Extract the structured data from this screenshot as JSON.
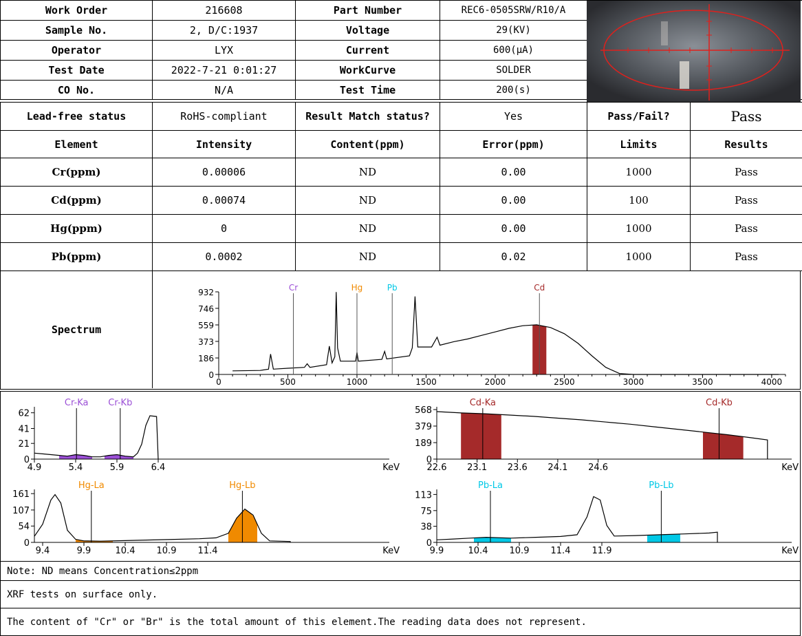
{
  "header": {
    "rows": [
      {
        "l1": "Work Order",
        "v1": "216608",
        "l2": "Part Number",
        "v2": "REC6-0505SRW/R10/A"
      },
      {
        "l1": "Sample No.",
        "v1": "2, D/C:1937",
        "l2": "Voltage",
        "v2": "29(KV)"
      },
      {
        "l1": "Operator",
        "v1": "LYX",
        "l2": "Current",
        "v2": "600(μA)"
      },
      {
        "l1": "Test Date",
        "v1": "2022-7-21 0:01:27",
        "l2": "WorkCurve",
        "v2": "SOLDER"
      },
      {
        "l1": "CO No.",
        "v1": "N/A",
        "l2": "Test Time",
        "v2": "200(s)"
      }
    ]
  },
  "camera_image": {
    "description_icon": "sample-camera-view",
    "crosshair_color": "#e0201c"
  },
  "status_row": {
    "lead_free_label": "Lead-free status",
    "lead_free_value": "RoHS-compliant",
    "match_label": "Result Match status?",
    "match_value": "Yes",
    "passfail_label": "Pass/Fail?",
    "passfail_value": "Pass"
  },
  "results_table": {
    "headers": [
      "Element",
      "Intensity",
      "Content(ppm)",
      "Error(ppm)",
      "Limits",
      "Results"
    ],
    "rows": [
      {
        "element": "Cr(ppm)",
        "intensity": "0.00006",
        "content": "ND",
        "error": "0.00",
        "limit": "1000",
        "result": "Pass"
      },
      {
        "element": "Cd(ppm)",
        "intensity": "0.00074",
        "content": "ND",
        "error": "0.00",
        "limit": "100",
        "result": "Pass"
      },
      {
        "element": "Hg(ppm)",
        "intensity": "0",
        "content": "ND",
        "error": "0.00",
        "limit": "1000",
        "result": "Pass"
      },
      {
        "element": "Pb(ppm)",
        "intensity": "0.0002",
        "content": "ND",
        "error": "0.02",
        "limit": "1000",
        "result": "Pass"
      }
    ]
  },
  "spectrum_label": "Spectrum",
  "chart_data": [
    {
      "type": "line",
      "id": "main-spectrum",
      "yticks": [
        "0",
        "186",
        "373",
        "559",
        "746",
        "932"
      ],
      "ytick_values": [
        0,
        186,
        373,
        559,
        746,
        932
      ],
      "xticks": [
        "0",
        "500",
        "1000",
        "1500",
        "2000",
        "2500",
        "3000",
        "3500",
        "4000"
      ],
      "xtick_values": [
        0,
        500,
        1000,
        1500,
        2000,
        2500,
        3000,
        3500,
        4000
      ],
      "xlim": [
        0,
        4100
      ],
      "ylim": [
        0,
        932
      ],
      "markers": [
        {
          "label": "Cr",
          "x": 540,
          "color": "#9b4fd6"
        },
        {
          "label": "Hg",
          "x": 1000,
          "color": "#f08a00"
        },
        {
          "label": "Pb",
          "x": 1255,
          "color": "#00c8e6"
        },
        {
          "label": "Cd",
          "x": 2320,
          "color": "#a52a2a"
        }
      ],
      "highlight": {
        "x_from": 2270,
        "x_to": 2370,
        "color": "#a52a2a"
      },
      "line_points": [
        [
          100,
          40
        ],
        [
          300,
          45
        ],
        [
          360,
          60
        ],
        [
          375,
          230
        ],
        [
          395,
          60
        ],
        [
          500,
          70
        ],
        [
          620,
          80
        ],
        [
          640,
          120
        ],
        [
          660,
          80
        ],
        [
          780,
          110
        ],
        [
          800,
          320
        ],
        [
          820,
          130
        ],
        [
          840,
          200
        ],
        [
          850,
          930
        ],
        [
          860,
          300
        ],
        [
          880,
          150
        ],
        [
          990,
          150
        ],
        [
          1000,
          250
        ],
        [
          1010,
          150
        ],
        [
          1180,
          170
        ],
        [
          1200,
          260
        ],
        [
          1215,
          175
        ],
        [
          1380,
          210
        ],
        [
          1400,
          300
        ],
        [
          1420,
          880
        ],
        [
          1440,
          310
        ],
        [
          1540,
          310
        ],
        [
          1580,
          420
        ],
        [
          1600,
          330
        ],
        [
          1700,
          370
        ],
        [
          1800,
          400
        ],
        [
          1900,
          440
        ],
        [
          2000,
          480
        ],
        [
          2100,
          520
        ],
        [
          2200,
          550
        ],
        [
          2300,
          560
        ],
        [
          2400,
          530
        ],
        [
          2500,
          460
        ],
        [
          2600,
          350
        ],
        [
          2700,
          210
        ],
        [
          2800,
          80
        ],
        [
          2900,
          10
        ],
        [
          3000,
          0
        ],
        [
          4050,
          0
        ]
      ]
    },
    {
      "type": "line",
      "id": "cr-panel",
      "yticks": [
        "0",
        "21",
        "41",
        "62"
      ],
      "ytick_values": [
        0,
        21,
        41,
        62
      ],
      "xticks": [
        "4.9",
        "5.4",
        "5.9",
        "6.4"
      ],
      "xtick_values": [
        4.9,
        5.4,
        5.9,
        6.4
      ],
      "xlim": [
        4.9,
        9.2
      ],
      "ylim": [
        0,
        70
      ],
      "unit": "KeV",
      "markers": [
        {
          "label": "Cr-Ka",
          "x": 5.41,
          "color": "#9b4fd6"
        },
        {
          "label": "Cr-Kb",
          "x": 5.94,
          "color": "#9b4fd6"
        }
      ],
      "fills": [
        {
          "x_from": 5.2,
          "x_to": 5.6,
          "color": "#9b4fd6"
        },
        {
          "x_from": 5.75,
          "x_to": 6.1,
          "color": "#9b4fd6"
        }
      ],
      "line_points": [
        [
          4.9,
          8
        ],
        [
          5.0,
          7
        ],
        [
          5.1,
          6
        ],
        [
          5.2,
          5
        ],
        [
          5.3,
          4
        ],
        [
          5.4,
          6
        ],
        [
          5.5,
          5
        ],
        [
          5.6,
          3
        ],
        [
          5.7,
          3
        ],
        [
          5.8,
          5
        ],
        [
          5.9,
          6
        ],
        [
          6.0,
          4
        ],
        [
          6.1,
          3
        ],
        [
          6.15,
          8
        ],
        [
          6.2,
          20
        ],
        [
          6.25,
          45
        ],
        [
          6.3,
          58
        ],
        [
          6.38,
          57
        ],
        [
          6.4,
          0
        ]
      ]
    },
    {
      "type": "line",
      "id": "cd-panel",
      "yticks": [
        "0",
        "189",
        "379",
        "568"
      ],
      "ytick_values": [
        0,
        189,
        379,
        568
      ],
      "xticks": [
        "22.6",
        "23.1",
        "23.6",
        "24.1",
        "24.6"
      ],
      "xtick_values": [
        22.6,
        23.1,
        23.6,
        24.1,
        24.6
      ],
      "xlim": [
        22.6,
        27.0
      ],
      "ylim": [
        0,
        600
      ],
      "unit": "KeV",
      "markers": [
        {
          "label": "Cd-Ka",
          "x": 23.17,
          "color": "#a52a2a"
        },
        {
          "label": "Cd-Kb",
          "x": 26.1,
          "color": "#a52a2a"
        }
      ],
      "fills": [
        {
          "x_from": 22.9,
          "x_to": 23.4,
          "color": "#a52a2a"
        },
        {
          "x_from": 25.9,
          "x_to": 26.4,
          "color": "#a52a2a"
        }
      ],
      "line_points": [
        [
          22.6,
          545
        ],
        [
          22.9,
          530
        ],
        [
          23.2,
          520
        ],
        [
          23.5,
          505
        ],
        [
          23.8,
          490
        ],
        [
          24.1,
          470
        ],
        [
          24.4,
          450
        ],
        [
          24.7,
          425
        ],
        [
          25.0,
          400
        ],
        [
          25.3,
          370
        ],
        [
          25.6,
          340
        ],
        [
          25.9,
          310
        ],
        [
          26.2,
          280
        ],
        [
          26.5,
          245
        ],
        [
          26.7,
          220
        ],
        [
          26.7,
          0
        ]
      ]
    },
    {
      "type": "line",
      "id": "hg-panel",
      "yticks": [
        "0",
        "54",
        "107",
        "161"
      ],
      "ytick_values": [
        0,
        54,
        107,
        161
      ],
      "xticks": [
        "9.4",
        "9.9",
        "10.4",
        "10.9",
        "11.4"
      ],
      "xtick_values": [
        9.4,
        9.9,
        10.4,
        10.9,
        11.4
      ],
      "xlim": [
        9.3,
        13.6
      ],
      "ylim": [
        0,
        175
      ],
      "unit": "KeV",
      "markers": [
        {
          "label": "Hg-La",
          "x": 9.99,
          "color": "#f08a00"
        },
        {
          "label": "Hg-Lb",
          "x": 11.82,
          "color": "#f08a00"
        }
      ],
      "fills": [
        {
          "x_from": 9.8,
          "x_to": 10.25,
          "color": "#f08a00"
        },
        {
          "x_from": 11.65,
          "x_to": 12.0,
          "color": "#f08a00"
        }
      ],
      "line_points": [
        [
          9.3,
          20
        ],
        [
          9.4,
          60
        ],
        [
          9.5,
          140
        ],
        [
          9.55,
          158
        ],
        [
          9.62,
          130
        ],
        [
          9.7,
          40
        ],
        [
          9.8,
          10
        ],
        [
          9.9,
          5
        ],
        [
          10.1,
          4
        ],
        [
          10.4,
          6
        ],
        [
          10.7,
          8
        ],
        [
          11.0,
          10
        ],
        [
          11.3,
          12
        ],
        [
          11.5,
          15
        ],
        [
          11.65,
          30
        ],
        [
          11.75,
          80
        ],
        [
          11.85,
          110
        ],
        [
          11.95,
          90
        ],
        [
          12.05,
          30
        ],
        [
          12.15,
          5
        ],
        [
          12.4,
          3
        ],
        [
          12.4,
          0
        ]
      ]
    },
    {
      "type": "line",
      "id": "pb-panel",
      "yticks": [
        "0",
        "38",
        "75",
        "113"
      ],
      "ytick_values": [
        0,
        38,
        75,
        113
      ],
      "xticks": [
        "9.9",
        "10.4",
        "10.9",
        "11.4",
        "11.9"
      ],
      "xtick_values": [
        9.9,
        10.4,
        10.9,
        11.4,
        11.9
      ],
      "xlim": [
        9.9,
        14.2
      ],
      "ylim": [
        0,
        125
      ],
      "unit": "KeV",
      "markers": [
        {
          "label": "Pb-La",
          "x": 10.55,
          "color": "#00c8e6"
        },
        {
          "label": "Pb-Lb",
          "x": 12.62,
          "color": "#00c8e6"
        }
      ],
      "fills": [
        {
          "x_from": 10.35,
          "x_to": 10.8,
          "color": "#00c8e6"
        },
        {
          "x_from": 12.45,
          "x_to": 12.85,
          "color": "#00c8e6"
        }
      ],
      "line_points": [
        [
          9.9,
          6
        ],
        [
          10.1,
          8
        ],
        [
          10.3,
          10
        ],
        [
          10.5,
          12
        ],
        [
          10.8,
          10
        ],
        [
          11.1,
          12
        ],
        [
          11.4,
          14
        ],
        [
          11.6,
          18
        ],
        [
          11.72,
          60
        ],
        [
          11.8,
          108
        ],
        [
          11.88,
          100
        ],
        [
          11.96,
          40
        ],
        [
          12.05,
          15
        ],
        [
          12.3,
          16
        ],
        [
          12.6,
          18
        ],
        [
          12.9,
          20
        ],
        [
          13.2,
          22
        ],
        [
          13.3,
          24
        ],
        [
          13.3,
          0
        ]
      ]
    }
  ],
  "notes": [
    "Note: ND means Concentration≤2ppm",
    "XRF tests on surface only.",
    "The content of \"Cr\" or \"Br\" is the total amount of this element.The reading data does not represent."
  ]
}
